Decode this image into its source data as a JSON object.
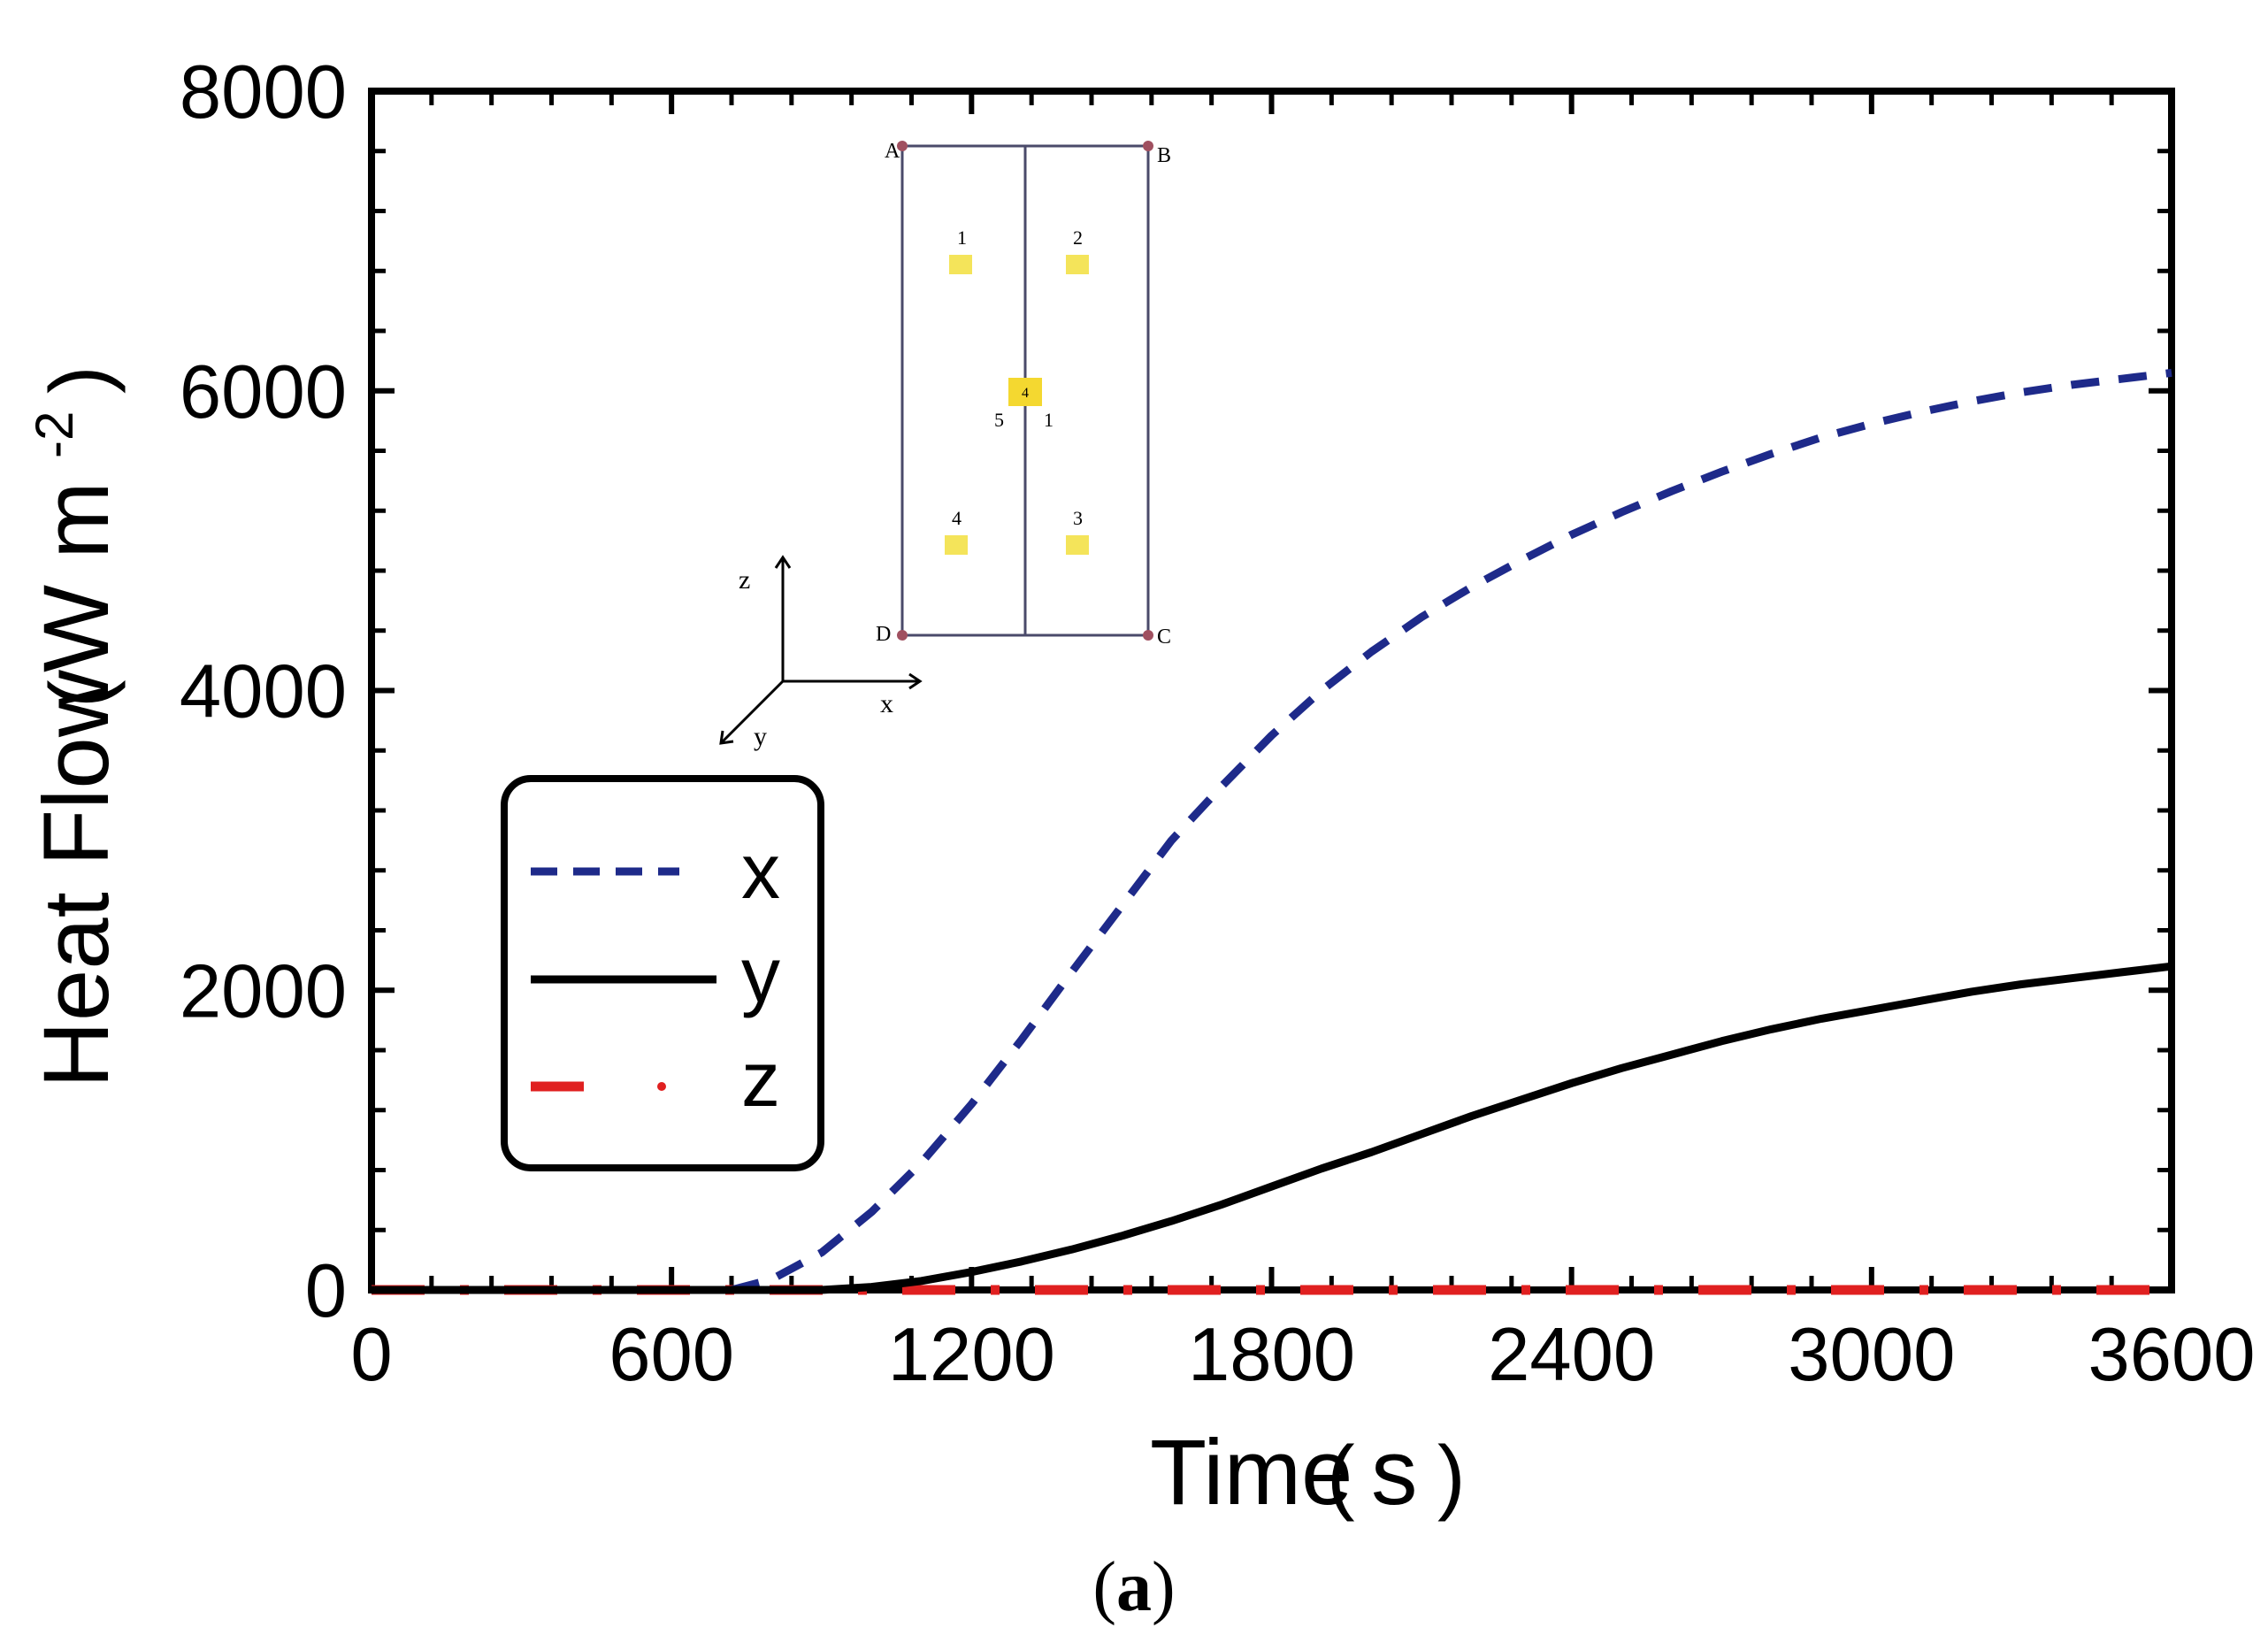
{
  "chart_data": {
    "type": "line",
    "xlabel": "Time",
    "xlabel_unit": "s",
    "ylabel": "Heat Flow",
    "ylabel_unit": "W m",
    "ylabel_unit_exp": "-2",
    "xlim": [
      0,
      3600
    ],
    "ylim": [
      0,
      8000
    ],
    "x_ticks": [
      0,
      600,
      1200,
      1800,
      2400,
      3000,
      3600
    ],
    "y_ticks": [
      0,
      2000,
      4000,
      6000,
      8000
    ],
    "x_tick_labels": [
      "0",
      "600",
      "1200",
      "1800",
      "2400",
      "3000",
      "3600"
    ],
    "y_tick_labels": [
      "0",
      "2000",
      "4000",
      "6000",
      "8000"
    ],
    "x_minor_step": 120,
    "y_minor_step": 400,
    "legend_position": "lower-left",
    "caption": "(a)",
    "caption_letter": "a",
    "series": [
      {
        "name": "x",
        "style": "dashed",
        "color": "#1e2a8a",
        "x": [
          720,
          800,
          900,
          1000,
          1100,
          1200,
          1300,
          1400,
          1500,
          1600,
          1700,
          1800,
          1900,
          2000,
          2100,
          2200,
          2300,
          2400,
          2500,
          2600,
          2700,
          2800,
          2900,
          3000,
          3100,
          3200,
          3300,
          3400,
          3500,
          3600
        ],
        "y": [
          0,
          70,
          250,
          520,
          850,
          1240,
          1670,
          2120,
          2560,
          3000,
          3360,
          3700,
          4000,
          4260,
          4490,
          4690,
          4870,
          5040,
          5190,
          5330,
          5460,
          5580,
          5690,
          5780,
          5860,
          5930,
          5990,
          6040,
          6080,
          6120
        ]
      },
      {
        "name": "y",
        "style": "solid",
        "color": "#000000",
        "x": [
          0,
          900,
          1000,
          1100,
          1200,
          1300,
          1400,
          1500,
          1600,
          1700,
          1800,
          1900,
          2000,
          2100,
          2200,
          2300,
          2400,
          2500,
          2600,
          2700,
          2800,
          2900,
          3000,
          3100,
          3200,
          3300,
          3400,
          3500,
          3600
        ],
        "y": [
          0,
          0,
          20,
          60,
          120,
          190,
          270,
          360,
          460,
          570,
          690,
          810,
          920,
          1040,
          1160,
          1270,
          1380,
          1480,
          1570,
          1660,
          1740,
          1810,
          1870,
          1930,
          1990,
          2040,
          2080,
          2120,
          2160
        ]
      },
      {
        "name": "z",
        "style": "dash-dot",
        "color": "#e02020",
        "x": [
          0,
          3600
        ],
        "y": [
          0,
          0
        ]
      }
    ]
  },
  "inset": {
    "corners": [
      "A",
      "B",
      "C",
      "D"
    ],
    "points": [
      "1",
      "2",
      "3",
      "4",
      "5",
      "1"
    ],
    "center_label": "4",
    "axes": [
      "z",
      "x",
      "y"
    ],
    "node_color": "#a05060",
    "point_color": "#f4e45a"
  }
}
